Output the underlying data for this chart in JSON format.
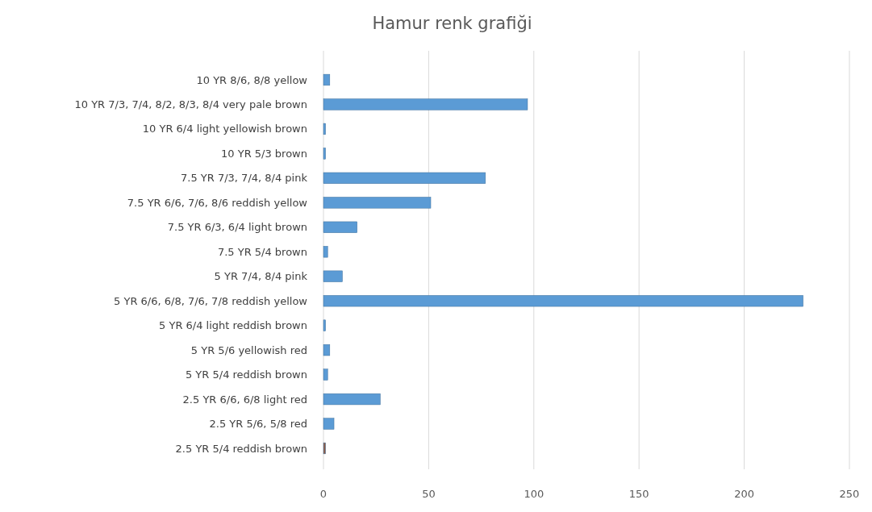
{
  "chart_data": {
    "type": "bar",
    "orientation": "horizontal",
    "title": "Hamur renk grafiği",
    "categories": [
      "10 YR 8/6, 8/8 yellow",
      "10 YR 7/3, 7/4, 8/2, 8/3, 8/4 very pale brown",
      "10 YR 6/4 light yellowish brown",
      "10 YR 5/3 brown",
      "7.5 YR 7/3, 7/4, 8/4 pink",
      "7.5 YR 6/6, 7/6, 8/6 reddish yellow",
      "7.5 YR 6/3, 6/4 light brown",
      "7.5 YR 5/4 brown",
      "5 YR 7/4, 8/4 pink",
      "5 YR 6/6, 6/8, 7/6, 7/8 reddish yellow",
      "5 YR 6/4 light reddish brown",
      "5 YR 5/6 yellowish red",
      "5 YR 5/4 reddish brown",
      "2.5 YR 6/6, 6/8 light red",
      "2.5 YR 5/6, 5/8 red",
      "2.5 YR 5/4 reddish brown"
    ],
    "values": [
      3,
      97,
      1,
      1,
      77,
      51,
      16,
      2,
      9,
      228,
      1,
      3,
      2,
      27,
      5,
      1
    ],
    "colors": [
      "#5b9bd5",
      "#5b9bd5",
      "#5b9bd5",
      "#5b9bd5",
      "#5b9bd5",
      "#5b9bd5",
      "#5b9bd5",
      "#5b9bd5",
      "#5b9bd5",
      "#5b9bd5",
      "#5b9bd5",
      "#5b9bd5",
      "#5b9bd5",
      "#5b9bd5",
      "#5b9bd5",
      "#8b5e4c"
    ],
    "xlim": [
      0,
      250
    ],
    "xticks": [
      0,
      50,
      100,
      150,
      200,
      250
    ],
    "grid": "x"
  }
}
